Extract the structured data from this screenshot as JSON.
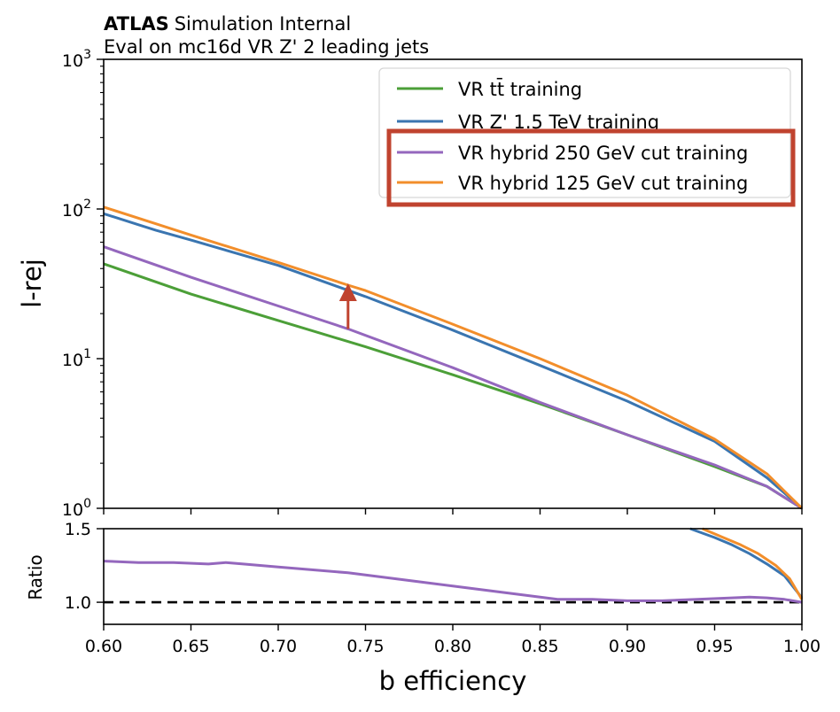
{
  "header": {
    "experiment": "ATLAS",
    "status": "Simulation Internal",
    "subtitle": "Eval on mc16d VR Z' 2 leading jets"
  },
  "chart_data": [
    {
      "type": "line",
      "panel": "main",
      "xlabel": "",
      "ylabel": "l-rej",
      "xlim": [
        0.6,
        1.0
      ],
      "ylim": [
        1,
        1000
      ],
      "yscale": "log",
      "grid": false,
      "legend_position": "top-right",
      "y_tick_labels": [
        {
          "base": "10",
          "exp": "0",
          "value": 1
        },
        {
          "base": "10",
          "exp": "1",
          "value": 10
        },
        {
          "base": "10",
          "exp": "2",
          "value": 100
        },
        {
          "base": "10",
          "exp": "3",
          "value": 1000
        }
      ],
      "series": [
        {
          "name": "VR tt̄ training",
          "color": "#4c9f38",
          "x": [
            0.6,
            0.65,
            0.7,
            0.75,
            0.8,
            0.85,
            0.9,
            0.95,
            0.98,
            1.0
          ],
          "y": [
            43,
            27,
            18,
            12,
            7.8,
            5.0,
            3.1,
            1.9,
            1.4,
            1.0
          ]
        },
        {
          "name": "VR Z' 1.5 TeV training",
          "color": "#3a75b0",
          "x": [
            0.6,
            0.63,
            0.65,
            0.7,
            0.75,
            0.8,
            0.85,
            0.9,
            0.95,
            0.98,
            1.0
          ],
          "y": [
            93,
            72,
            62,
            42,
            26,
            15.5,
            9.0,
            5.2,
            2.8,
            1.6,
            1.0
          ]
        },
        {
          "name": "VR hybrid 250 GeV cut training",
          "color": "#9467bd",
          "x": [
            0.6,
            0.65,
            0.7,
            0.74,
            0.8,
            0.85,
            0.9,
            0.95,
            0.98,
            1.0
          ],
          "y": [
            56,
            35,
            22.5,
            15.8,
            8.7,
            5.1,
            3.1,
            1.95,
            1.4,
            1.0
          ]
        },
        {
          "name": "VR hybrid 125 GeV cut training",
          "color": "#f28e2b",
          "x": [
            0.6,
            0.65,
            0.7,
            0.74,
            0.75,
            0.8,
            0.85,
            0.9,
            0.95,
            0.98,
            1.0
          ],
          "y": [
            103,
            67,
            44,
            31,
            28.5,
            17,
            10,
            5.7,
            2.9,
            1.7,
            1.0
          ]
        }
      ],
      "annotations": [
        {
          "type": "arrow",
          "color": "#c0432f",
          "x": 0.74,
          "from_y": 15.8,
          "to_y": 31
        },
        {
          "type": "highlight-box",
          "color": "#c0432f",
          "around": "legend entries 3-4"
        }
      ]
    },
    {
      "type": "line",
      "panel": "ratio",
      "xlabel": "b efficiency",
      "ylabel": "Ratio",
      "xlim": [
        0.6,
        1.0
      ],
      "ylim": [
        0.85,
        1.5
      ],
      "x_ticks": [
        "0.60",
        "0.65",
        "0.70",
        "0.75",
        "0.80",
        "0.85",
        "0.90",
        "0.95",
        "1.00"
      ],
      "y_ticks": [
        "1.0",
        "1.5"
      ],
      "reference_line": {
        "y": 1.0,
        "style": "dashed",
        "color": "#000000"
      },
      "series": [
        {
          "color": "#9467bd",
          "x": [
            0.6,
            0.62,
            0.64,
            0.66,
            0.67,
            0.68,
            0.7,
            0.72,
            0.74,
            0.76,
            0.78,
            0.8,
            0.82,
            0.84,
            0.86,
            0.88,
            0.9,
            0.92,
            0.94,
            0.96,
            0.97,
            0.98,
            0.99,
            1.0
          ],
          "y": [
            1.28,
            1.27,
            1.27,
            1.26,
            1.27,
            1.26,
            1.24,
            1.22,
            1.2,
            1.17,
            1.14,
            1.11,
            1.08,
            1.05,
            1.02,
            1.02,
            1.01,
            1.01,
            1.02,
            1.03,
            1.035,
            1.03,
            1.02,
            1.0
          ]
        },
        {
          "color": "#3a75b0",
          "x": [
            0.936,
            0.95,
            0.96,
            0.97,
            0.98,
            0.99,
            1.0
          ],
          "y": [
            1.5,
            1.44,
            1.39,
            1.33,
            1.26,
            1.18,
            1.03
          ]
        },
        {
          "color": "#f28e2b",
          "x": [
            0.943,
            0.955,
            0.965,
            0.975,
            0.985,
            0.993,
            1.0
          ],
          "y": [
            1.5,
            1.44,
            1.39,
            1.33,
            1.25,
            1.16,
            1.02
          ]
        }
      ]
    }
  ]
}
